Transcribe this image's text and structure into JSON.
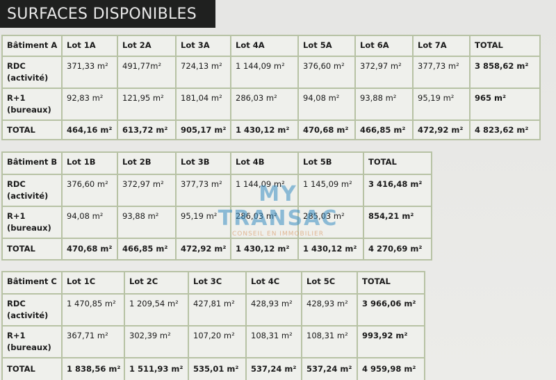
{
  "header": {
    "title": "SURFACES DISPONIBLES"
  },
  "watermark": {
    "brand": "MY TRANSAC",
    "tagline": "CONSEIL EN IMMOBILIER"
  },
  "tables": [
    {
      "header": [
        "Bâtiment A",
        "Lot 1A",
        "Lot 2A",
        "Lot 3A",
        "Lot 4A",
        "Lot 5A",
        "Lot 6A",
        "Lot 7A",
        "TOTAL"
      ],
      "rows": [
        {
          "label": [
            "RDC",
            "(activité)"
          ],
          "cells": [
            "371,33 m²",
            "491,77m²",
            "724,13 m²",
            "1 144,09 m²",
            "376,60 m²",
            "372,97 m²",
            "377,73 m²",
            "3 858,62 m²"
          ]
        },
        {
          "label": [
            "R+1",
            "(bureaux)"
          ],
          "cells": [
            "92,83 m²",
            "121,95 m²",
            "181,04 m²",
            "286,03 m²",
            "94,08 m²",
            "93,88 m²",
            "95,19 m²",
            "965 m²"
          ]
        },
        {
          "label": [
            "TOTAL"
          ],
          "cells": [
            "464,16 m²",
            "613,72 m²",
            "905,17 m²",
            "1 430,12 m²",
            "470,68 m²",
            "466,85 m²",
            "472,92 m²",
            "4 823,62 m²"
          ]
        }
      ]
    },
    {
      "header": [
        "Bâtiment B",
        "Lot 1B",
        "Lot 2B",
        "Lot 3B",
        "Lot 4B",
        "Lot 5B",
        "TOTAL"
      ],
      "rows": [
        {
          "label": [
            "RDC",
            "(activité)"
          ],
          "cells": [
            "376,60 m²",
            "372,97 m²",
            "377,73 m²",
            "1 144,09 m²",
            "1 145,09 m²",
            "3 416,48 m²"
          ]
        },
        {
          "label": [
            "R+1",
            "(bureaux)"
          ],
          "cells": [
            "94,08 m²",
            "93,88 m²",
            "95,19 m²",
            "286,03 m²",
            "285,03 m²",
            "854,21 m²"
          ]
        },
        {
          "label": [
            "TOTAL"
          ],
          "cells": [
            "470,68 m²",
            "466,85 m²",
            "472,92 m²",
            "1 430,12 m²",
            "1 430,12 m²",
            "4 270,69 m²"
          ]
        }
      ]
    },
    {
      "header": [
        "Bâtiment C",
        "Lot 1C",
        "Lot 2C",
        "Lot 3C",
        "Lot 4C",
        "Lot 5C",
        "TOTAL"
      ],
      "rows": [
        {
          "label": [
            "RDC",
            "(activité)"
          ],
          "cells": [
            "1 470,85 m²",
            "1 209,54 m²",
            "427,81 m²",
            "428,93 m²",
            "428,93 m²",
            "3 966,06 m²"
          ]
        },
        {
          "label": [
            "R+1",
            "(bureaux)"
          ],
          "cells": [
            "367,71 m²",
            "302,39 m²",
            "107,20 m²",
            "108,31 m²",
            "108,31 m²",
            "993,92 m²"
          ]
        },
        {
          "label": [
            "TOTAL"
          ],
          "cells": [
            "1 838,56 m²",
            "1 511,93 m²",
            "535,01 m²",
            "537,24 m²",
            "537,24 m²",
            "4 959,98 m²"
          ]
        }
      ]
    }
  ]
}
